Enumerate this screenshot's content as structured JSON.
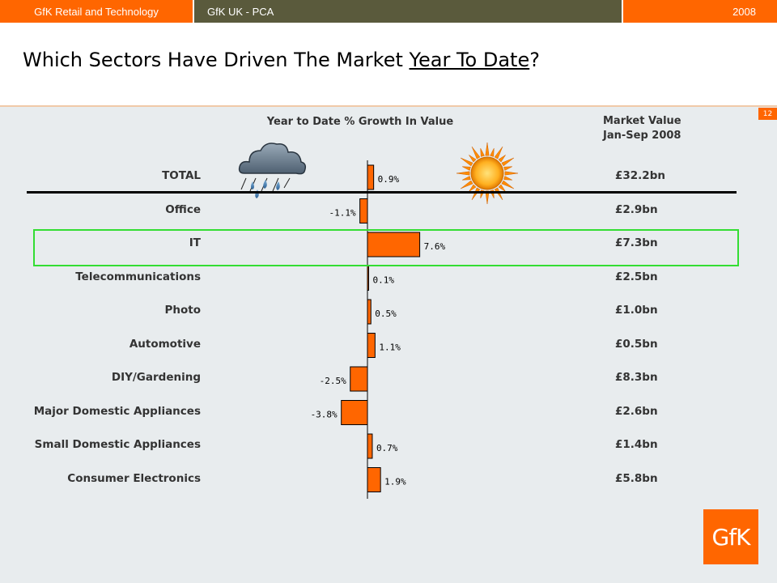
{
  "header": {
    "org": "GfK Retail and Technology",
    "project": "GfK UK - PCA",
    "year": "2008"
  },
  "page": {
    "title_pre": "Which Sectors Have Driven The Market ",
    "title_ul": "Year To Date",
    "title_post": "?",
    "page_number": "12",
    "logo": "GfK"
  },
  "market_value_header": {
    "line1": "Market Value",
    "line2": "Jan-Sep 2008"
  },
  "icons": {
    "rain": "rain-cloud-icon",
    "sun": "sun-icon"
  },
  "chart_data": {
    "type": "bar",
    "orientation": "horizontal",
    "title": "Year to Date % Growth In Value",
    "categories": [
      "TOTAL",
      "Office",
      "IT",
      "Telecommunications",
      "Photo",
      "Automotive",
      "DIY/Gardening",
      "Major Domestic Appliances",
      "Small Domestic Appliances",
      "Consumer Electronics"
    ],
    "values": [
      0.9,
      -1.1,
      7.6,
      0.1,
      0.5,
      1.1,
      -2.5,
      -3.8,
      0.7,
      1.9
    ],
    "labels": [
      "0.9%",
      "-1.1%",
      "7.6%",
      "0.1%",
      "0.5%",
      "1.1%",
      "-2.5%",
      "-3.8%",
      "0.7%",
      "1.9%"
    ],
    "market_values": [
      "£32.2bn",
      "£2.9bn",
      "£7.3bn",
      "£2.5bn",
      "£1.0bn",
      "£0.5bn",
      "£8.3bn",
      "£2.6bn",
      "£1.4bn",
      "£5.8bn"
    ],
    "highlighted_category": "IT",
    "bar_color": "#ff6600"
  }
}
